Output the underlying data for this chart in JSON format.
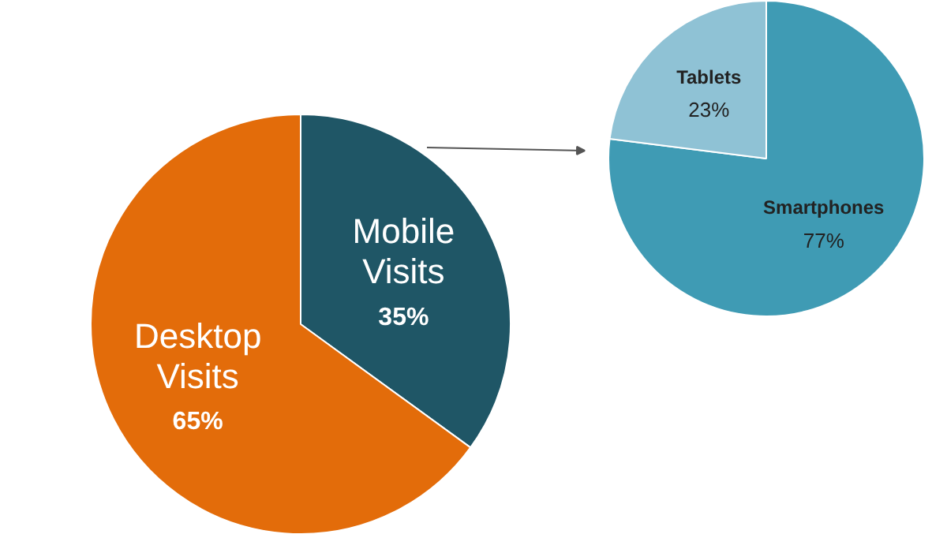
{
  "chart_data": [
    {
      "type": "pie",
      "categories": [
        "Mobile Visits",
        "Desktop Visits"
      ],
      "values": [
        35,
        65
      ],
      "colors": [
        "#1f5666",
        "#e36c0a"
      ],
      "value_labels": [
        "35%",
        "65%"
      ]
    },
    {
      "type": "pie",
      "categories": [
        "Smartphones",
        "Tablets"
      ],
      "values": [
        77,
        23
      ],
      "colors": [
        "#3f9bb4",
        "#8fc2d5"
      ],
      "value_labels": [
        "77%",
        "23%"
      ]
    }
  ]
}
